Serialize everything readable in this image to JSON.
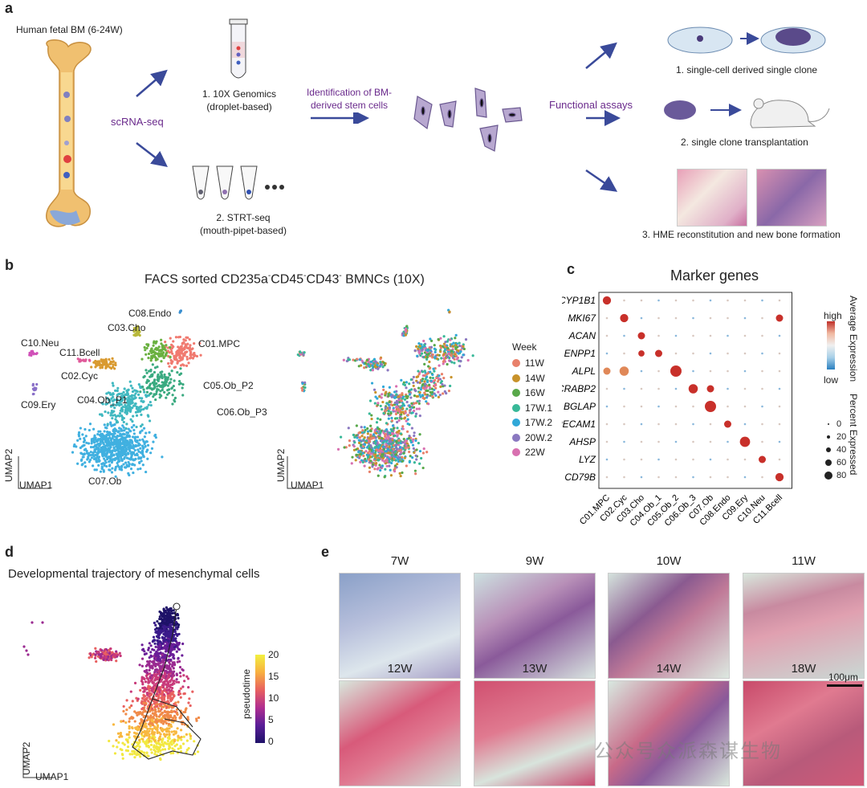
{
  "panel_a": {
    "label": "a",
    "bone_title": "Human fetal BM (6-24W)",
    "scrnaseq": "scRNA-seq",
    "method1_line1": "1. 10X Genomics",
    "method1_line2": "(droplet-based)",
    "method2_line1": "2. STRT-seq",
    "method2_line2": "(mouth-pipet-based)",
    "ident_line1": "Identification of BM-",
    "ident_line2": "derived stem cells",
    "functional": "Functional assays",
    "assay1": "1. single-cell derived single clone",
    "assay2": "2. single clone transplantation",
    "assay3": "3. HME reconstitution and new bone formation"
  },
  "panel_b": {
    "label": "b",
    "title_parts": [
      "FACS sorted CD235a",
      "-",
      "CD45",
      "-",
      "CD43",
      "-",
      " BMNCs (10X)"
    ],
    "axis_x": "UMAP1",
    "axis_y": "UMAP2",
    "clusters": [
      {
        "name": "C08.Endo",
        "color": "#3a8fd0"
      },
      {
        "name": "C03.Cho",
        "color": "#b8b83a"
      },
      {
        "name": "C01.MPC",
        "color": "#f07a70"
      },
      {
        "name": "C10.Neu",
        "color": "#d050b8"
      },
      {
        "name": "C11.Bcell",
        "color": "#e05a9a"
      },
      {
        "name": "C02.Cyc",
        "color": "#d99a30"
      },
      {
        "name": "C05.Ob_P2",
        "color": "#3aaa80"
      },
      {
        "name": "C04.Ob_P1",
        "color": "#6ab040"
      },
      {
        "name": "C06.Ob_P3",
        "color": "#40b8c0"
      },
      {
        "name": "C09.Ery",
        "color": "#8a70c8"
      },
      {
        "name": "C07.Ob",
        "color": "#40b0e0"
      }
    ],
    "legend_title": "Week",
    "weeks": [
      {
        "name": "11W",
        "color": "#e8806a"
      },
      {
        "name": "14W",
        "color": "#c8922a"
      },
      {
        "name": "16W",
        "color": "#58a84a"
      },
      {
        "name": "17W.1",
        "color": "#38b898"
      },
      {
        "name": "17W.2",
        "color": "#30a8d8"
      },
      {
        "name": "20W.2",
        "color": "#8a78c0"
      },
      {
        "name": "22W",
        "color": "#d870b0"
      }
    ]
  },
  "panel_c": {
    "label": "c",
    "title": "Marker genes",
    "legend_expr_title": "Average Expression",
    "legend_high": "high",
    "legend_low": "low",
    "legend_pct_title": "Percent Expressed",
    "pct_levels": [
      "0",
      "20",
      "40",
      "60",
      "80"
    ]
  },
  "chart_data": {
    "type": "dotplot",
    "title": "Marker genes",
    "genes": [
      "CYP1B1",
      "MKI67",
      "ACAN",
      "ENPP1",
      "ALPL",
      "CRABP2",
      "BGLAP",
      "PECAM1",
      "AHSP",
      "LYZ",
      "CD79B"
    ],
    "clusters": [
      "C01.MPC",
      "C02.Cyc",
      "C03.Cho",
      "C04.Ob_1",
      "C05.Ob_2",
      "C06.Ob_3",
      "C07.Ob",
      "C08.Endo",
      "C09.Ery",
      "C10.Neu",
      "C11.Bcell"
    ],
    "highlights": [
      {
        "gene": "CYP1B1",
        "cluster": "C01.MPC",
        "pct": 50,
        "expr": "high"
      },
      {
        "gene": "MKI67",
        "cluster": "C02.Cyc",
        "pct": 50,
        "expr": "high"
      },
      {
        "gene": "MKI67",
        "cluster": "C11.Bcell",
        "pct": 40,
        "expr": "high"
      },
      {
        "gene": "ACAN",
        "cluster": "C03.Cho",
        "pct": 40,
        "expr": "high"
      },
      {
        "gene": "ENPP1",
        "cluster": "C03.Cho",
        "pct": 30,
        "expr": "high"
      },
      {
        "gene": "ENPP1",
        "cluster": "C04.Ob_1",
        "pct": 40,
        "expr": "high"
      },
      {
        "gene": "ALPL",
        "cluster": "C01.MPC",
        "pct": 40,
        "expr": "mid"
      },
      {
        "gene": "ALPL",
        "cluster": "C02.Cyc",
        "pct": 60,
        "expr": "mid"
      },
      {
        "gene": "ALPL",
        "cluster": "C05.Ob_2",
        "pct": 80,
        "expr": "high"
      },
      {
        "gene": "CRABP2",
        "cluster": "C06.Ob_3",
        "pct": 60,
        "expr": "high"
      },
      {
        "gene": "CRABP2",
        "cluster": "C07.Ob",
        "pct": 40,
        "expr": "high"
      },
      {
        "gene": "BGLAP",
        "cluster": "C07.Ob",
        "pct": 80,
        "expr": "high"
      },
      {
        "gene": "PECAM1",
        "cluster": "C08.Endo",
        "pct": 40,
        "expr": "high"
      },
      {
        "gene": "AHSP",
        "cluster": "C09.Ery",
        "pct": 70,
        "expr": "high"
      },
      {
        "gene": "LYZ",
        "cluster": "C10.Neu",
        "pct": 40,
        "expr": "high"
      },
      {
        "gene": "CD79B",
        "cluster": "C11.Bcell",
        "pct": 50,
        "expr": "high"
      }
    ]
  },
  "panel_d": {
    "label": "d",
    "title": "Developmental trajectory of mesenchymal cells",
    "axis_x": "UMAP1",
    "axis_y": "UMAP2",
    "colorbar_label": "pseudotime",
    "ticks": [
      "20",
      "15",
      "10",
      "5",
      "0"
    ]
  },
  "panel_e": {
    "label": "e",
    "weeks_row1": [
      "7W",
      "9W",
      "10W",
      "11W"
    ],
    "weeks_row2": [
      "12W",
      "13W",
      "14W",
      "18W"
    ],
    "scalebar": "100μm",
    "watermark": "公众号众派森谋生物"
  }
}
